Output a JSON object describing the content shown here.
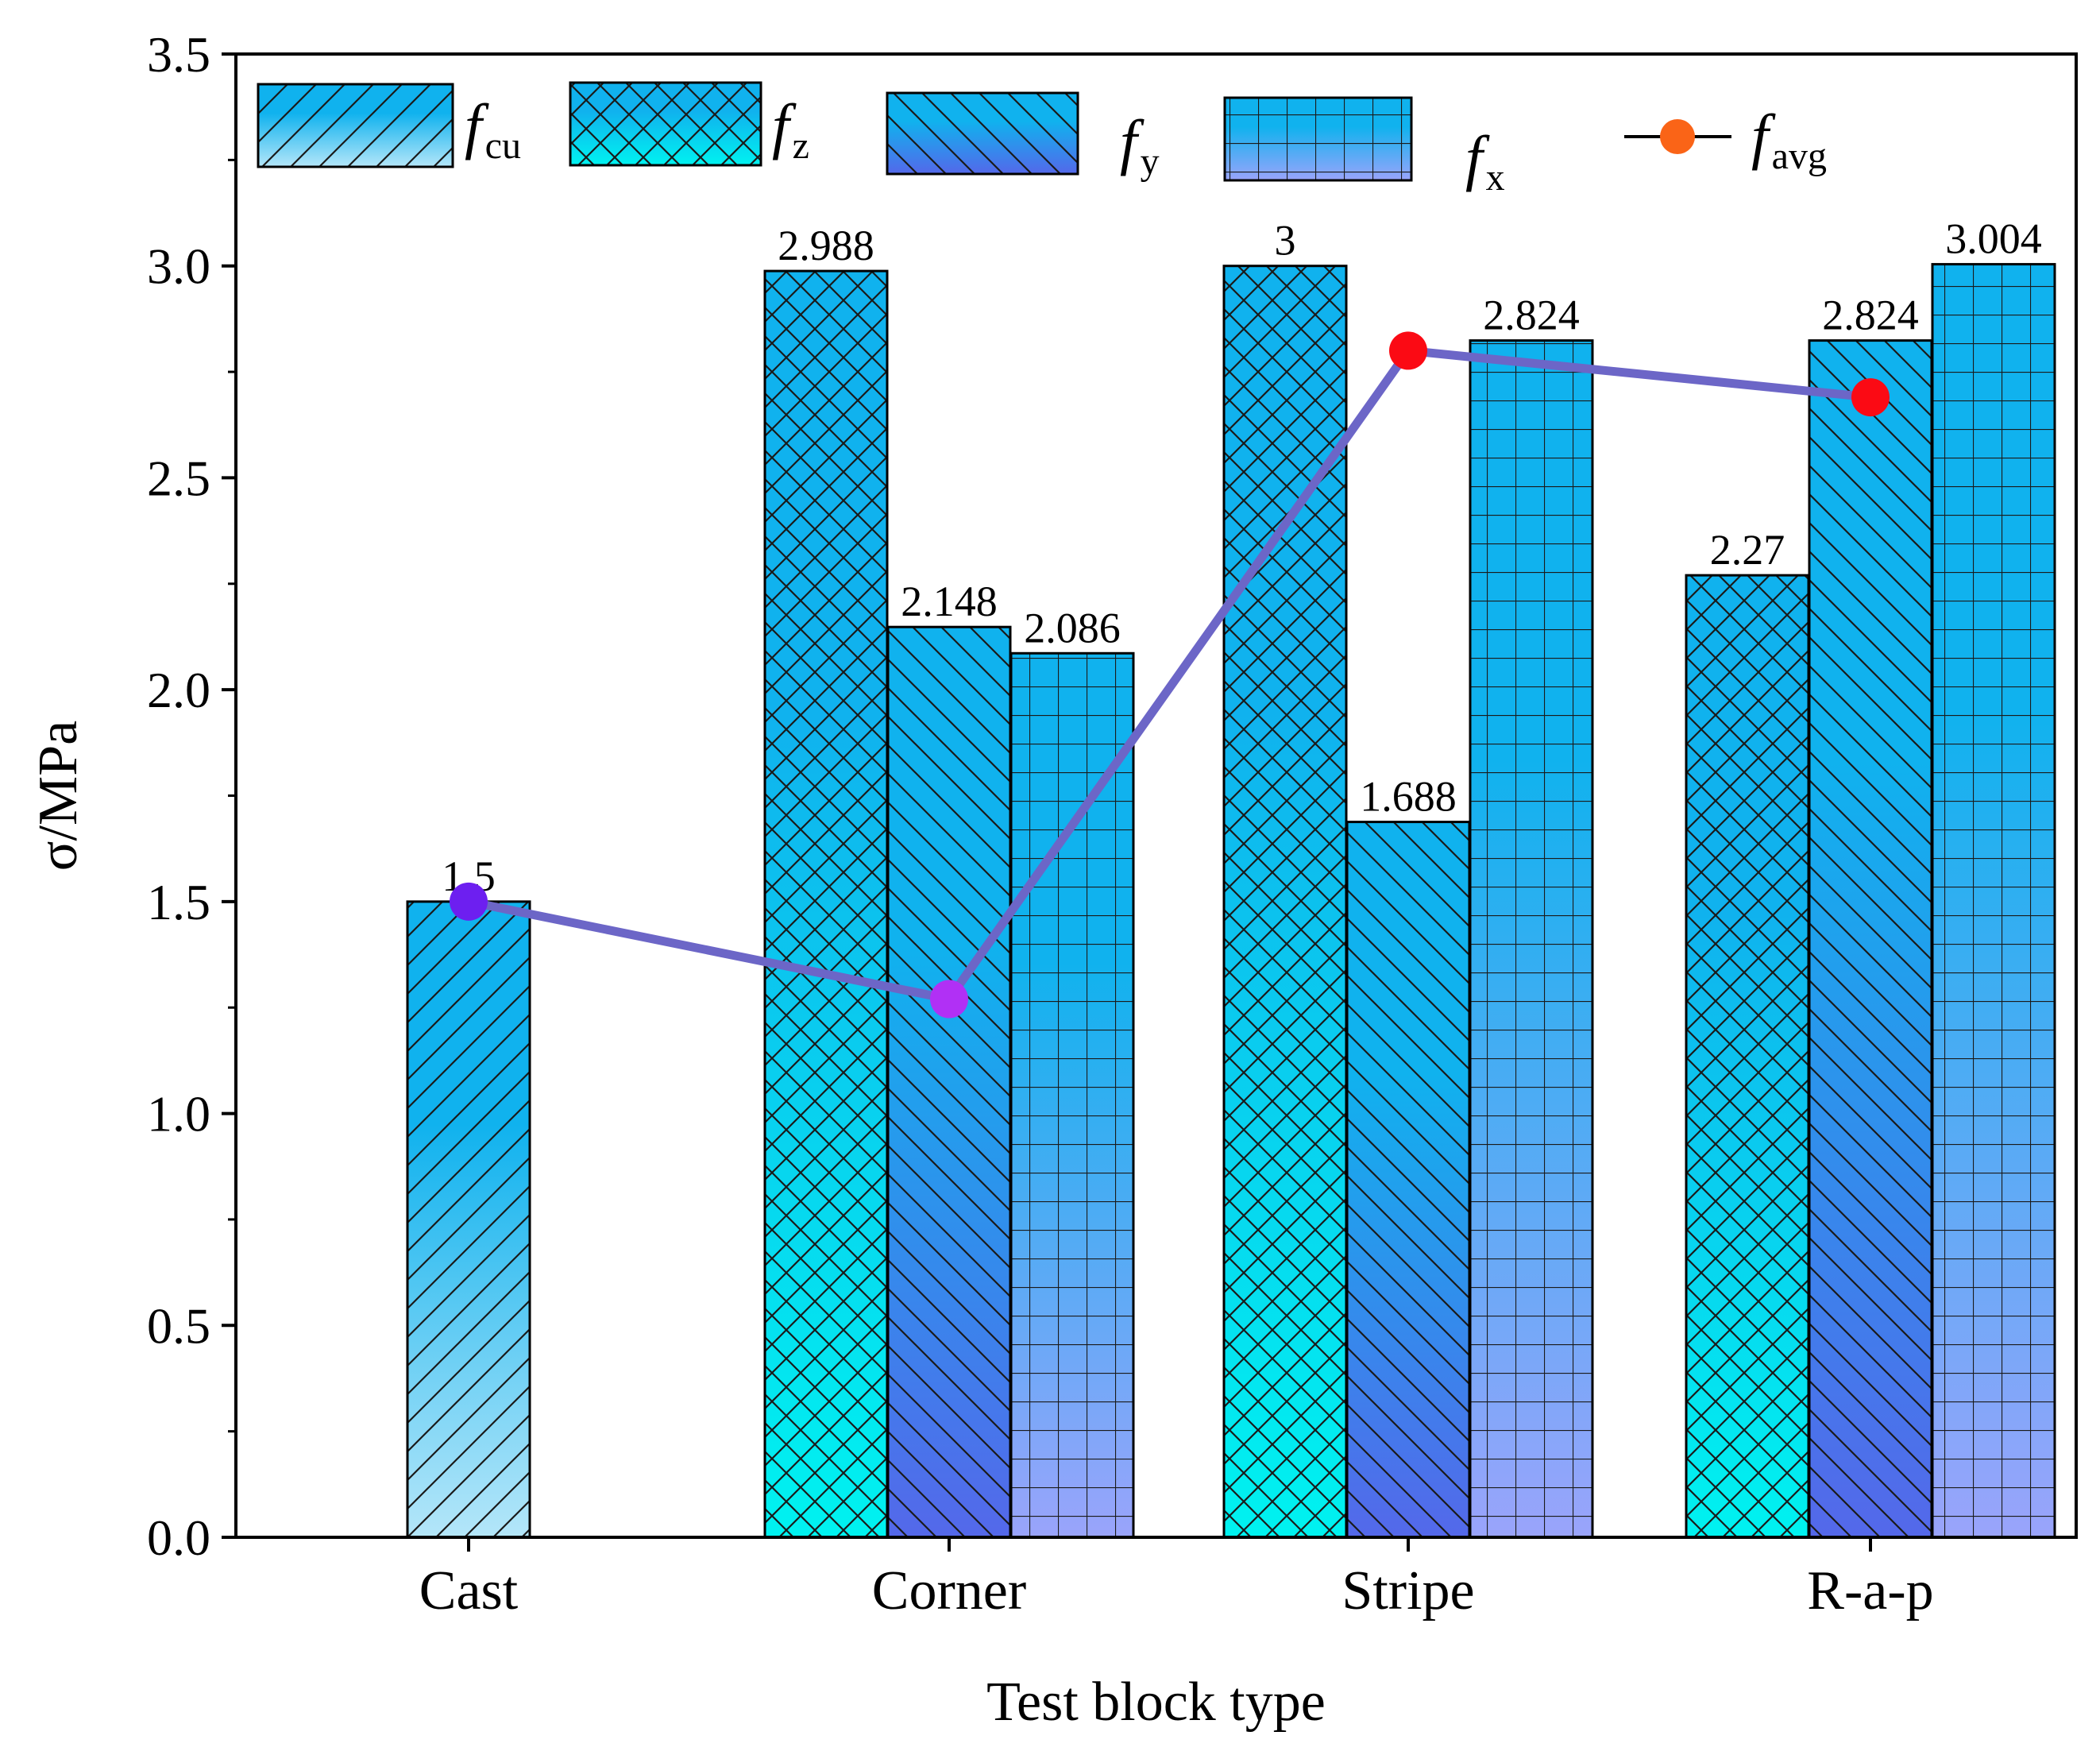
{
  "chart_data": {
    "type": "bar",
    "title": "",
    "xlabel": "Test block type",
    "ylabel": "σ/MPa",
    "ylim": [
      0,
      3.5
    ],
    "yticks": [
      "0.0",
      "0.5",
      "1.0",
      "1.5",
      "2.0",
      "2.5",
      "3.0",
      "3.5"
    ],
    "categories": [
      "Cast",
      "Corner",
      "Stripe",
      "R-a-p"
    ],
    "series": [
      {
        "key": "fcu",
        "name": "f",
        "sub": "cu",
        "values": [
          1.5,
          null,
          null,
          null
        ],
        "labels": [
          "1.5",
          "",
          "",
          ""
        ],
        "color_top": "#10b2ee",
        "color_bottom": "#b4e6f9",
        "pattern": "diagonal"
      },
      {
        "key": "fz",
        "name": "f",
        "sub": "z",
        "values": [
          null,
          2.988,
          3.0,
          2.27
        ],
        "labels": [
          "",
          "2.988",
          "3",
          "2.27"
        ],
        "color_top": "#10b2ee",
        "color_bottom": "#00f2f0",
        "pattern": "crosshatch"
      },
      {
        "key": "fy",
        "name": "f",
        "sub": "y",
        "values": [
          null,
          2.148,
          1.688,
          2.824
        ],
        "labels": [
          "",
          "2.148",
          "1.688",
          "2.824"
        ],
        "color_top": "#10b2ee",
        "color_bottom": "#5468ea",
        "pattern": "backdiagonal"
      },
      {
        "key": "fx",
        "name": "f",
        "sub": "x",
        "values": [
          null,
          2.086,
          2.824,
          3.004
        ],
        "labels": [
          "",
          "2.086",
          "2.824",
          "3.004"
        ],
        "color_top": "#10b2ee",
        "color_bottom": "#9aa4fb",
        "pattern": "grid"
      }
    ],
    "line_series": {
      "key": "favg",
      "name": "f",
      "sub": "avg",
      "values": [
        1.5,
        1.27,
        2.8,
        2.69
      ],
      "line_color": "#6c66c7",
      "point_colors": [
        "#6d1ff0",
        "#b130f5",
        "#fb0a14",
        "#fb0a14"
      ],
      "legend_marker_color": "#fa6417"
    },
    "legend_position": "top"
  }
}
